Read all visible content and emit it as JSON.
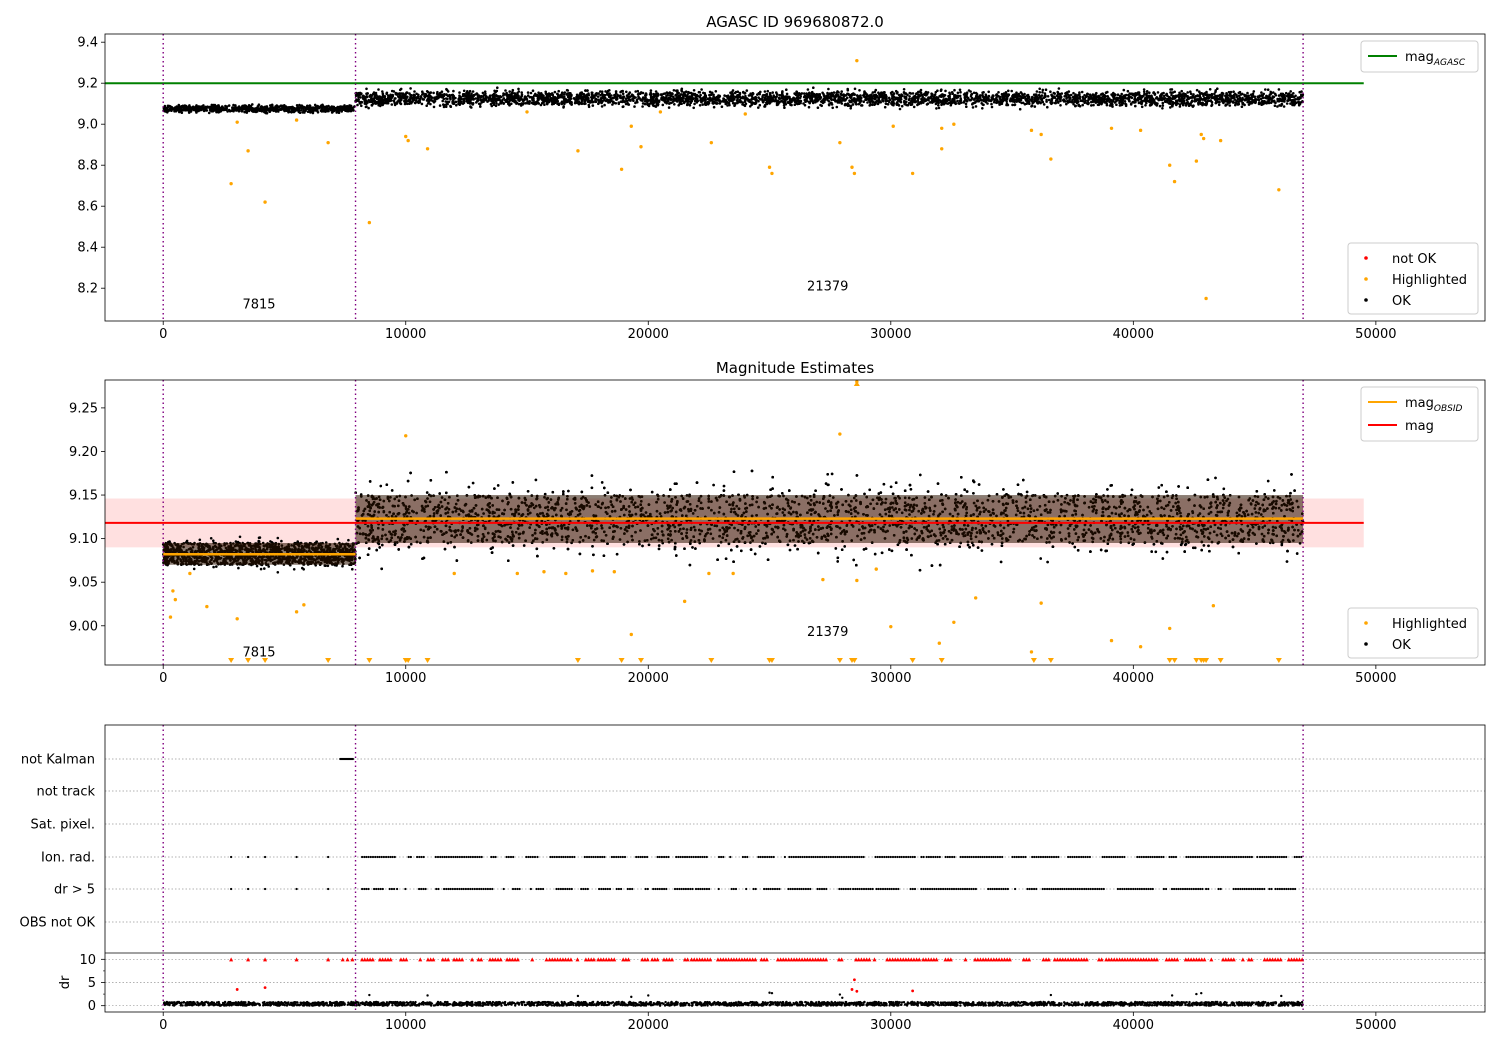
{
  "chart_data": [
    {
      "type": "scatter",
      "title": "AGASC ID 969680872.0",
      "xlabel": "",
      "ylabel": "",
      "xlim": [
        -2400,
        54500
      ],
      "ylim": [
        8.04,
        9.44
      ],
      "xticks": [
        0,
        10000,
        20000,
        30000,
        40000,
        50000
      ],
      "xtick_labels": [
        "0",
        "10000",
        "20000",
        "30000",
        "40000",
        "50000"
      ],
      "yticks": [
        8.2,
        8.4,
        8.6,
        8.8,
        9.0,
        9.2,
        9.4
      ],
      "ytick_labels": [
        "8.2",
        "8.4",
        "8.6",
        "8.8",
        "9.0",
        "9.2",
        "9.4"
      ],
      "obsid_boundaries": [
        0,
        7930,
        47000
      ],
      "segments": [
        {
          "label": "7815",
          "x_range": [
            0,
            7930
          ],
          "label_x": 3950,
          "label_y": 8.1,
          "ok_band": [
            9.05,
            9.1
          ],
          "color": "#000000"
        },
        {
          "label": "21379",
          "x_range": [
            7930,
            47000
          ],
          "label_x": 27400,
          "label_y": 8.19,
          "ok_band": [
            9.07,
            9.18
          ],
          "color": "#000000"
        }
      ],
      "hlines": [
        {
          "name": "mag_AGASC",
          "y": 9.2,
          "color": "#008000",
          "x_range": [
            -2400,
            49500
          ]
        }
      ],
      "series": [
        {
          "name": "not OK",
          "color": "#ff0000",
          "points": []
        },
        {
          "name": "Highlighted",
          "color": "#ffa500",
          "points": [
            [
              2800,
              8.71
            ],
            [
              3500,
              8.87
            ],
            [
              4200,
              8.62
            ],
            [
              3050,
              9.01
            ],
            [
              5500,
              9.02
            ],
            [
              6800,
              8.91
            ],
            [
              8500,
              8.52
            ],
            [
              10000,
              8.94
            ],
            [
              10100,
              8.92
            ],
            [
              10900,
              8.88
            ],
            [
              17100,
              8.87
            ],
            [
              18900,
              8.78
            ],
            [
              19300,
              8.99
            ],
            [
              19700,
              8.89
            ],
            [
              22600,
              8.91
            ],
            [
              25000,
              8.79
            ],
            [
              25100,
              8.76
            ],
            [
              27900,
              8.91
            ],
            [
              28400,
              8.79
            ],
            [
              28500,
              8.76
            ],
            [
              28600,
              9.31
            ],
            [
              30100,
              8.99
            ],
            [
              30900,
              8.76
            ],
            [
              32100,
              8.98
            ],
            [
              32100,
              8.88
            ],
            [
              32600,
              9.0
            ],
            [
              35800,
              8.97
            ],
            [
              36200,
              8.95
            ],
            [
              36600,
              8.83
            ],
            [
              39100,
              8.98
            ],
            [
              40300,
              8.97
            ],
            [
              41500,
              8.8
            ],
            [
              41700,
              8.72
            ],
            [
              42600,
              8.82
            ],
            [
              42800,
              8.95
            ],
            [
              42900,
              8.93
            ],
            [
              43000,
              8.15
            ],
            [
              43600,
              8.92
            ],
            [
              46000,
              8.68
            ],
            [
              15000,
              9.06
            ],
            [
              20500,
              9.06
            ],
            [
              24000,
              9.05
            ]
          ]
        },
        {
          "name": "OK",
          "color": "#000000",
          "points": []
        }
      ],
      "legend_lines": [
        {
          "label": "mag",
          "sub": "AGASC",
          "color": "#008000",
          "position": "top-right"
        }
      ],
      "legend_points": [
        {
          "label": "not OK",
          "color": "#ff0000"
        },
        {
          "label": "Highlighted",
          "color": "#ffa500"
        },
        {
          "label": "OK",
          "color": "#000000"
        }
      ],
      "legend_points_position": "bottom-right"
    },
    {
      "type": "scatter",
      "title": "Magnitude Estimates",
      "xlabel": "",
      "ylabel": "",
      "xlim": [
        -2400,
        54500
      ],
      "ylim": [
        8.955,
        9.282
      ],
      "xticks": [
        0,
        10000,
        20000,
        30000,
        40000,
        50000
      ],
      "xtick_labels": [
        "0",
        "10000",
        "20000",
        "30000",
        "40000",
        "50000"
      ],
      "yticks": [
        9.0,
        9.05,
        9.1,
        9.15,
        9.2,
        9.25
      ],
      "ytick_labels": [
        "9.00",
        "9.05",
        "9.10",
        "9.15",
        "9.20",
        "9.25"
      ],
      "obsid_boundaries": [
        0,
        7930,
        47000
      ],
      "segments": [
        {
          "label": "7815",
          "x_range": [
            0,
            7930
          ],
          "label_x": 3950,
          "label_y": 8.965,
          "ok_band": [
            9.06,
            9.105
          ],
          "core_band": [
            9.07,
            9.095
          ],
          "obsid_mag": 9.082
        },
        {
          "label": "21379",
          "x_range": [
            7930,
            47000
          ],
          "label_x": 27400,
          "label_y": 8.988,
          "ok_band": [
            9.06,
            9.185
          ],
          "core_band": [
            9.095,
            9.15
          ],
          "obsid_mag": 9.123
        }
      ],
      "mag": 9.118,
      "mag_band": [
        9.09,
        9.146
      ],
      "hlines": [
        {
          "name": "mag",
          "y": 9.118,
          "color": "#ff0000",
          "x_range": [
            -2400,
            49500
          ]
        }
      ],
      "series": [
        {
          "name": "Highlighted",
          "color": "#ffa500",
          "points": [
            [
              300,
              9.01
            ],
            [
              400,
              9.04
            ],
            [
              500,
              9.03
            ],
            [
              1100,
              9.06
            ],
            [
              1800,
              9.022
            ],
            [
              3050,
              9.008
            ],
            [
              5500,
              9.016
            ],
            [
              5800,
              9.024
            ],
            [
              12000,
              9.06
            ],
            [
              14600,
              9.06
            ],
            [
              15700,
              9.062
            ],
            [
              16600,
              9.06
            ],
            [
              17700,
              9.063
            ],
            [
              18600,
              9.062
            ],
            [
              19300,
              8.99
            ],
            [
              21500,
              9.028
            ],
            [
              22500,
              9.06
            ],
            [
              23500,
              9.06
            ],
            [
              27200,
              9.053
            ],
            [
              28600,
              9.052
            ],
            [
              29400,
              9.065
            ],
            [
              30000,
              8.999
            ],
            [
              32000,
              8.98
            ],
            [
              32600,
              9.004
            ],
            [
              33500,
              9.032
            ],
            [
              35800,
              8.97
            ],
            [
              36200,
              9.026
            ],
            [
              39100,
              8.983
            ],
            [
              40300,
              8.976
            ],
            [
              41500,
              8.997
            ],
            [
              43300,
              9.023
            ],
            [
              28600,
              9.28
            ],
            [
              27900,
              9.22
            ],
            [
              10000,
              9.218
            ]
          ]
        },
        {
          "name": "OK",
          "color": "#000000",
          "points": []
        }
      ],
      "offscale_low_x": [
        2800,
        3500,
        4200,
        6800,
        8500,
        10000,
        10100,
        10900,
        17100,
        18900,
        19700,
        22600,
        25000,
        25100,
        27900,
        28400,
        28500,
        30900,
        32100,
        35900,
        36600,
        41500,
        41700,
        42600,
        42800,
        42900,
        43000,
        43600,
        46000
      ],
      "legend_lines": [
        {
          "label": "mag",
          "sub": "OBSID",
          "color": "#ffa500"
        },
        {
          "label": "mag",
          "sub": "",
          "color": "#ff0000"
        }
      ],
      "legend_points": [
        {
          "label": "Highlighted",
          "color": "#ffa500"
        },
        {
          "label": "OK",
          "color": "#000000"
        }
      ],
      "legend_points_position": "bottom-right"
    },
    {
      "type": "scatter",
      "title": "",
      "xlim": [
        -2400,
        54500
      ],
      "obsid_boundaries": [
        0,
        7930,
        47000
      ],
      "flag_rows": [
        "not Kalman",
        "not track",
        "Sat. pixel.",
        "Ion. rad.",
        "dr > 5",
        "OBS not OK"
      ],
      "flag_events": {
        "not Kalman": {
          "ranges": [
            [
              7300,
              7850
            ]
          ]
        },
        "Ion. rad.": {
          "points": [
            2800,
            3500,
            4200,
            5500,
            6800
          ],
          "range_start": 8200,
          "range_end": 47000
        },
        "dr > 5": {
          "points": [
            2800,
            3500,
            4200,
            5500,
            6800
          ],
          "range_start": 8200,
          "range_end": 47000
        }
      },
      "dr": {
        "ylabel": "dr",
        "yticks": [
          0,
          5,
          10
        ],
        "ytick_labels": [
          "0",
          "5",
          "10"
        ],
        "ylim": [
          -0.5,
          10.5
        ],
        "typical": [
          0,
          0.8
        ],
        "capped_red_x": [
          2800,
          3500,
          4200,
          5500,
          6800,
          7400,
          7600,
          7800
        ],
        "capped_red_range": [
          8200,
          47000
        ],
        "red_points": [
          [
            3050,
            3.5
          ],
          [
            4200,
            3.9
          ],
          [
            28500,
            5.6
          ],
          [
            28400,
            3.5
          ],
          [
            28600,
            3.1
          ],
          [
            30900,
            3.2
          ]
        ],
        "black_points": [
          [
            8500,
            2.3
          ],
          [
            10900,
            2.2
          ],
          [
            17100,
            2.1
          ],
          [
            19300,
            1.9
          ],
          [
            20000,
            2.2
          ],
          [
            25000,
            2.8
          ],
          [
            25100,
            2.7
          ],
          [
            27900,
            2.4
          ],
          [
            28000,
            1.7
          ],
          [
            36600,
            2.3
          ],
          [
            41600,
            2.2
          ],
          [
            42600,
            2.5
          ],
          [
            42800,
            2.7
          ],
          [
            46100,
            2.1
          ]
        ]
      },
      "xticks": [
        0,
        10000,
        20000,
        30000,
        40000,
        50000
      ],
      "xtick_labels": [
        "0",
        "10000",
        "20000",
        "30000",
        "40000",
        "50000"
      ]
    }
  ]
}
